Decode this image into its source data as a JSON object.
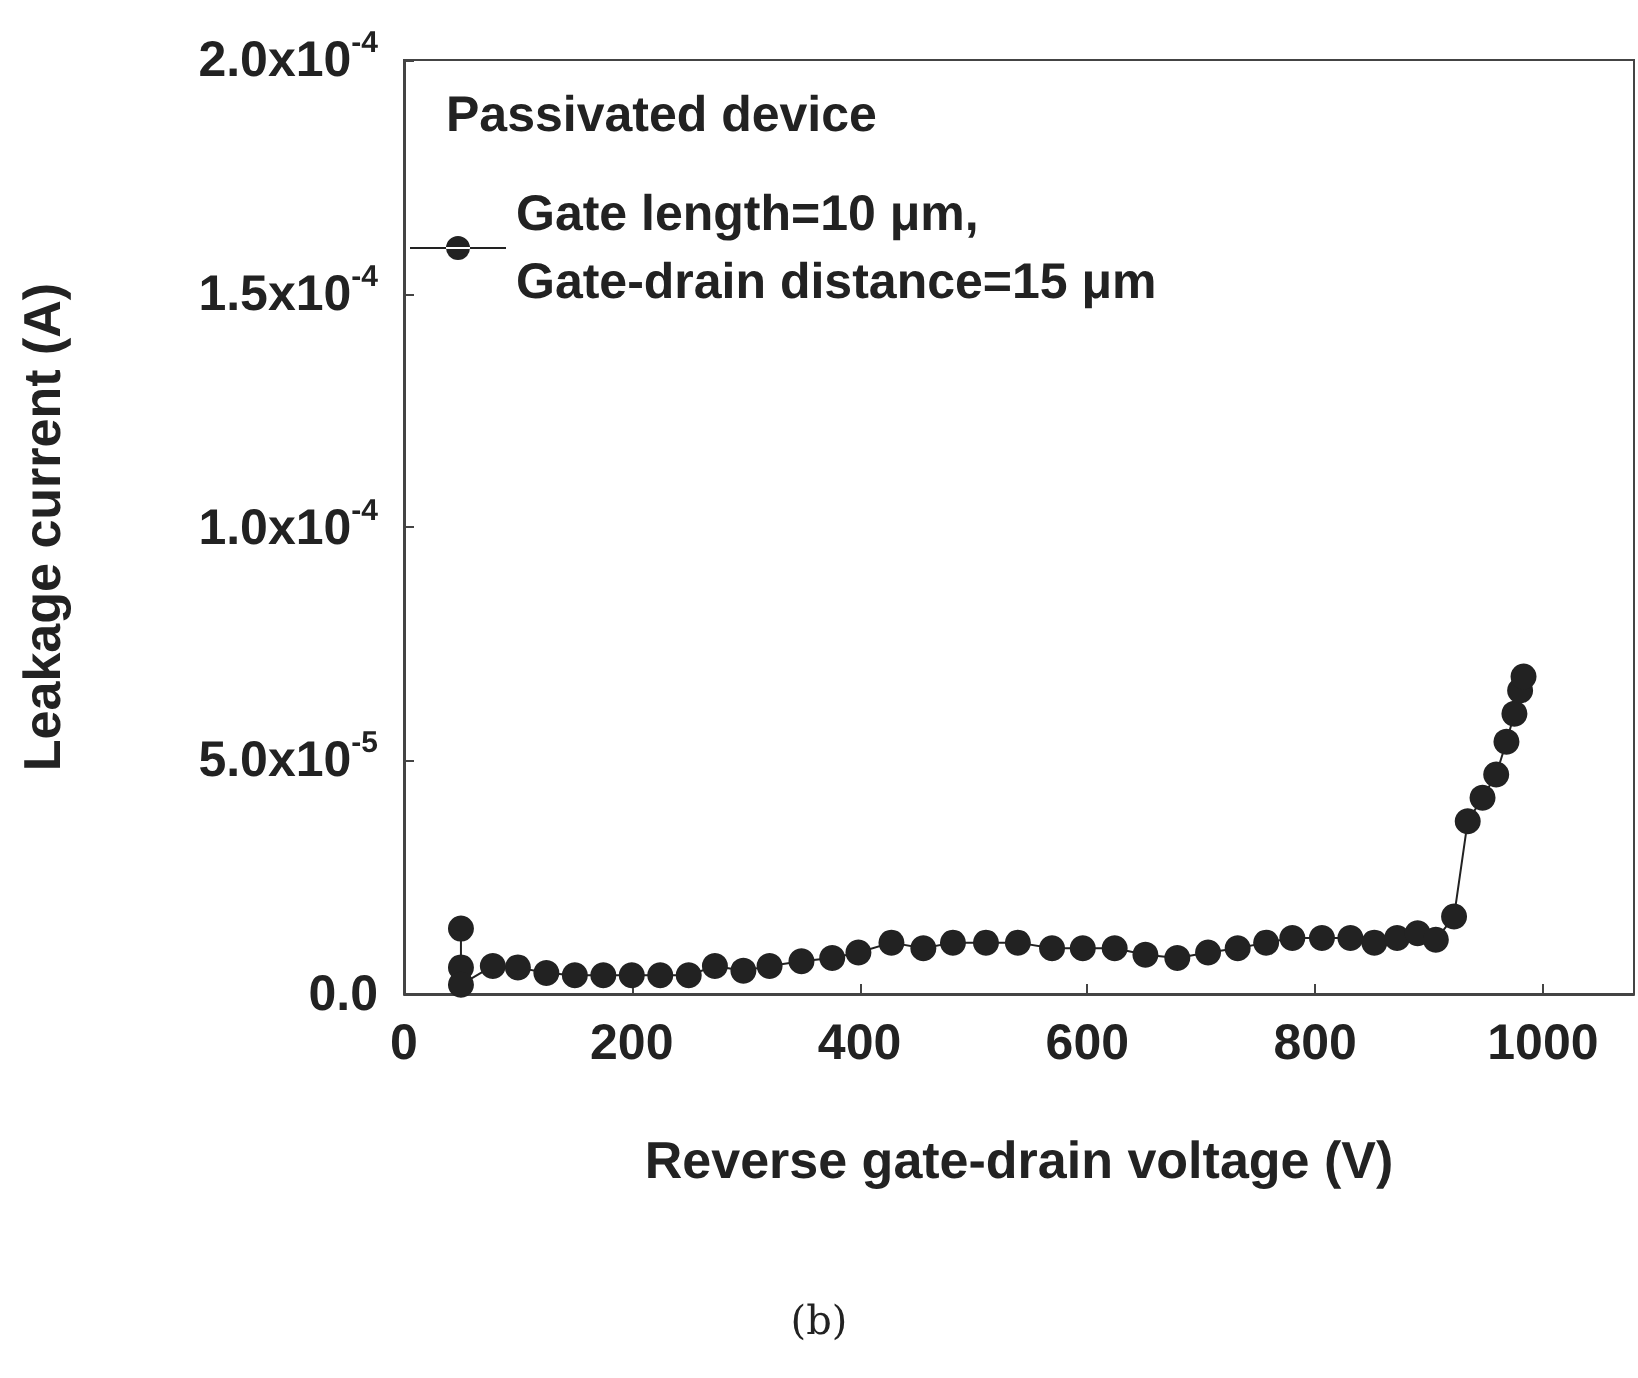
{
  "chart_data": {
    "type": "line",
    "xlabel": "Reverse gate-drain voltage (V)",
    "ylabel": "Leakage current (A)",
    "legend_title": "Passivated device",
    "x": [
      50,
      50,
      50,
      78,
      100,
      125,
      150,
      175,
      200,
      225,
      250,
      273,
      298,
      321,
      349,
      376,
      399,
      428,
      456,
      482,
      511,
      539,
      569,
      596,
      624,
      651,
      679,
      706,
      732,
      757,
      780,
      806,
      831,
      852,
      872,
      890,
      906,
      922,
      934,
      947,
      959,
      968,
      975,
      980,
      983
    ],
    "series": [
      {
        "name": "Gate length=10 μm,\nGate-drain distance=15 μm",
        "color": "#222222",
        "values": [
          1.4e-05,
          5.7e-06,
          2e-06,
          6e-06,
          5.7e-06,
          4.5e-06,
          4e-06,
          4e-06,
          4e-06,
          4e-06,
          4e-06,
          6e-06,
          5e-06,
          6e-06,
          7e-06,
          7.7e-06,
          8.9e-06,
          1.1e-05,
          9.8e-06,
          1.1e-05,
          1.1e-05,
          1.1e-05,
          9.8e-06,
          9.8e-06,
          9.8e-06,
          8.4e-06,
          7.7e-06,
          8.9e-06,
          9.8e-06,
          1.1e-05,
          1.2e-05,
          1.2e-05,
          1.2e-05,
          1.1e-05,
          1.2e-05,
          1.3e-05,
          1.16e-05,
          1.66e-05,
          3.7e-05,
          4.2e-05,
          4.7e-05,
          5.4e-05,
          6e-05,
          6.5e-05,
          6.8e-05
        ]
      }
    ],
    "xlim": [
      0,
      1080
    ],
    "xticks": [
      0,
      200,
      400,
      600,
      800,
      1000
    ],
    "ylim": [
      0,
      0.0002
    ],
    "yticks": [
      {
        "value": 0,
        "label": "0.0"
      },
      {
        "value": 5e-05,
        "label": "5.0x10$^{-5}$"
      },
      {
        "value": 0.0001,
        "label": "1.0x10$^{-4}$"
      },
      {
        "value": 0.00015,
        "label": "1.5x10$^{-4}$"
      },
      {
        "value": 0.0002,
        "label": "2.0x10$^{-4}$"
      }
    ],
    "marker": "circle",
    "line_style": "solid",
    "legend": "top left",
    "grid": false,
    "annotations": [
      "(b)"
    ]
  }
}
